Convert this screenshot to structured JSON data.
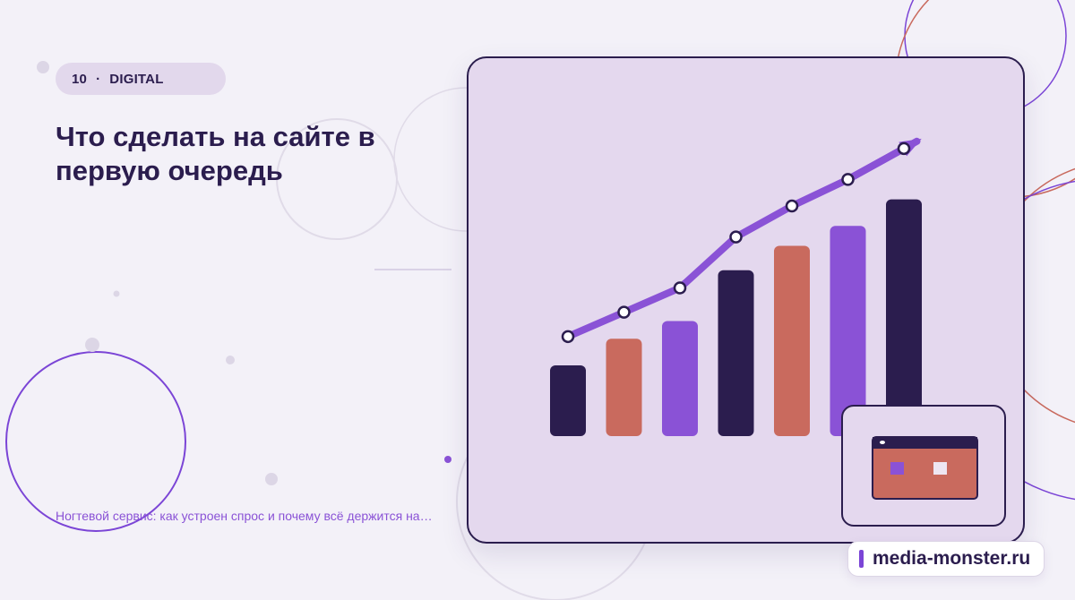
{
  "badge": {
    "number": "10",
    "separator": "·",
    "category": "DIGITAL"
  },
  "title": "Что сделать на сайте в первую очередь",
  "teaser": "Ногтевой сервис: как устроен спрос и почему всё держится на…",
  "site": {
    "label": "media-monster.ru"
  },
  "colors": {
    "dark": "#2b1d4e",
    "coral": "#c96a5e",
    "purple": "#8a52d6",
    "card": "#e4d8ee",
    "background": "#f3f1f8"
  },
  "chart_data": {
    "type": "bar",
    "bar_values": [
      32,
      44,
      52,
      75,
      86,
      95,
      107
    ],
    "bar_colors": [
      "dark",
      "coral",
      "purple",
      "dark",
      "coral",
      "purple",
      "dark"
    ],
    "trend_values": [
      45,
      56,
      67,
      90,
      104,
      116,
      130
    ],
    "ylim": [
      0,
      170
    ],
    "trend_arrow": true,
    "grid": false,
    "legend": "none"
  },
  "icons": {
    "browser": "browser-window-icon",
    "trend_arrow": "trend-arrow-icon"
  }
}
